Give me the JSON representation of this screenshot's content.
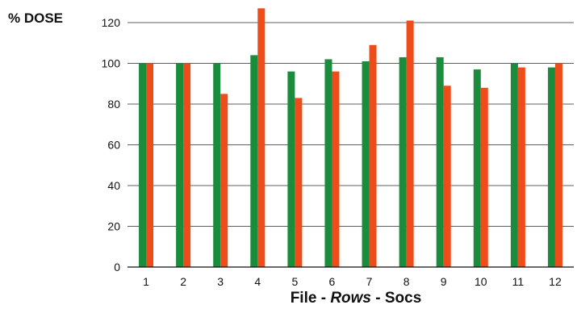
{
  "chart_data": {
    "type": "bar",
    "ylabel": "% DOSE",
    "xlabel": {
      "part1": "File - ",
      "part2": "Rows",
      "part3": " - Socs"
    },
    "categories": [
      "1",
      "2",
      "3",
      "4",
      "5",
      "6",
      "7",
      "8",
      "9",
      "10",
      "11",
      "12"
    ],
    "series": [
      {
        "color": "#1a8c3c",
        "values": [
          100,
          100,
          100,
          104,
          96,
          102,
          101,
          103,
          103,
          97,
          100,
          98
        ]
      },
      {
        "color": "#ef4c1c",
        "values": [
          100,
          100,
          85,
          127,
          83,
          96,
          109,
          121,
          89,
          88,
          98,
          100
        ]
      }
    ],
    "ylim": [
      0,
      120
    ],
    "yticks": [
      0,
      20,
      40,
      60,
      80,
      100,
      120
    ],
    "grid": true,
    "legend": "none"
  }
}
